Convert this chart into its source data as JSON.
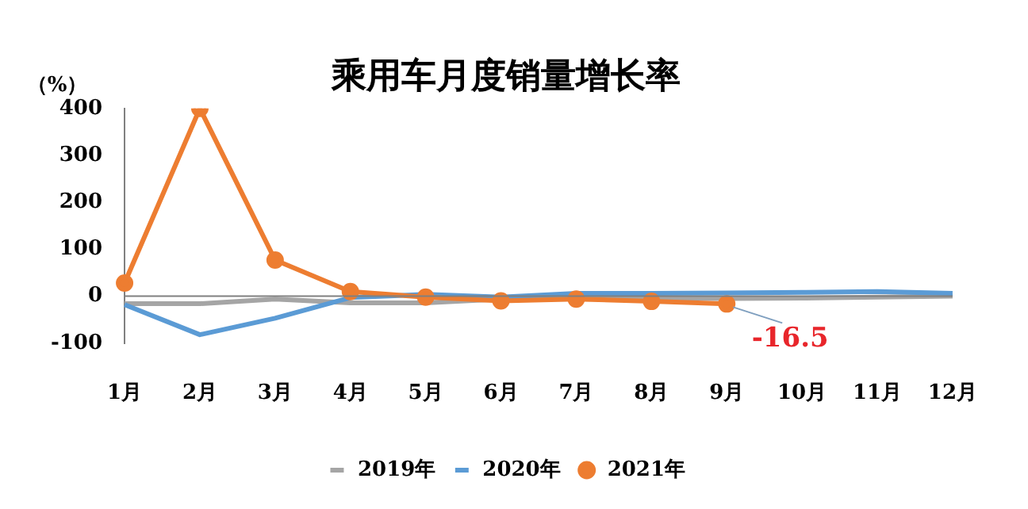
{
  "chart_data": {
    "type": "line",
    "title": "乘用车月度销量增长率",
    "ylabel": "（%）",
    "categories": [
      "1月",
      "2月",
      "3月",
      "4月",
      "5月",
      "6月",
      "7月",
      "8月",
      "9月",
      "10月",
      "11月",
      "12月"
    ],
    "series": [
      {
        "name": "2019年",
        "color": "#a5a5a5",
        "marker": "none",
        "values": [
          -16,
          -16,
          -6,
          -14,
          -14,
          -6,
          -4,
          -4,
          -5,
          -4,
          -2,
          0
        ]
      },
      {
        "name": "2020年",
        "color": "#5b9bd5",
        "marker": "none",
        "values": [
          -18,
          -82,
          -47,
          -3,
          4,
          -2,
          6,
          6,
          7,
          8,
          10,
          6
        ]
      },
      {
        "name": "2021年",
        "color": "#ed7d31",
        "marker": "circle",
        "values": [
          28,
          400,
          77,
          10,
          -2,
          -10,
          -6,
          -11,
          -16.5,
          null,
          null,
          null
        ]
      }
    ],
    "ylim": [
      -100,
      400
    ],
    "yticks": [
      -100,
      0,
      100,
      200,
      300,
      400
    ],
    "grid": false,
    "ref_lines": [
      {
        "axis": "y",
        "value": 0,
        "color": "#808080"
      }
    ],
    "legend": "bottom",
    "annotations": [
      {
        "text": "-16.5",
        "x": "9月",
        "y": -16.5
      }
    ]
  }
}
